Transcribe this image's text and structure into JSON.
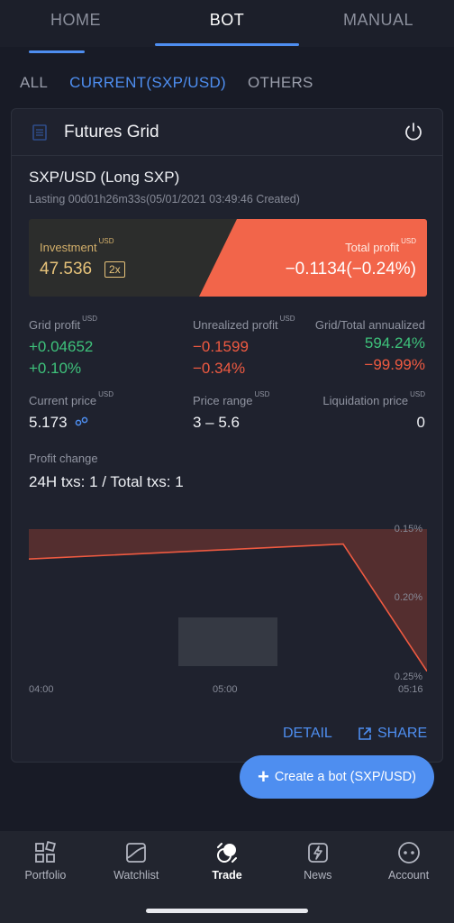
{
  "top_tabs": [
    {
      "label": "HOME"
    },
    {
      "label": "BOT"
    },
    {
      "label": "MANUAL"
    }
  ],
  "filters": [
    {
      "label": "ALL"
    },
    {
      "label": "CURRENT(SXP/USD)"
    },
    {
      "label": "OTHERS"
    }
  ],
  "card": {
    "title": "Futures Grid",
    "pair": "SXP/USD (Long SXP)",
    "lasting": "Lasting 00d01h26m33s(05/01/2021 03:49:46 Created)",
    "investment": {
      "label": "Investment",
      "unit": "USD",
      "value": "47.536",
      "leverage": "2x"
    },
    "total_profit": {
      "label": "Total profit",
      "unit": "USD",
      "value": "−0.1134(−0.24%)"
    },
    "grid_profit": {
      "label": "Grid profit",
      "unit": "USD",
      "value": "+0.04652",
      "pct": "+0.10%"
    },
    "unrealized_profit": {
      "label": "Unrealized profit",
      "unit": "USD",
      "value": "−0.1599",
      "pct": "−0.34%"
    },
    "annualized": {
      "label": "Grid/Total annualized",
      "grid": "594.24%",
      "total": "−99.99%"
    },
    "current_price": {
      "label": "Current price",
      "unit": "USD",
      "value": "5.173"
    },
    "price_range": {
      "label": "Price range",
      "unit": "USD",
      "value": "3 – 5.6"
    },
    "liquidation_price": {
      "label": "Liquidation price",
      "unit": "USD",
      "value": "0"
    },
    "profit_change_label": "Profit change",
    "txs": "24H txs: 1 / Total txs: 1",
    "detail_label": "DETAIL",
    "share_label": "SHARE"
  },
  "chart_data": {
    "type": "area",
    "x": [
      "04:00",
      "05:00",
      "05:16"
    ],
    "x_ticks": [
      "04:00",
      "05:00",
      "05:16"
    ],
    "y_ticks": [
      "0.15%",
      "0.20%",
      "0.25%"
    ],
    "points": [
      {
        "x": "04:00",
        "y": 0.17
      },
      {
        "x": "05:00",
        "y": 0.16
      },
      {
        "x": "05:16",
        "y": 0.245
      }
    ],
    "ylim": [
      0.15,
      0.25
    ],
    "y_inverted": true,
    "grid": false,
    "line_color": "#ef5a41",
    "fill_color": "#5a3030"
  },
  "create_button_label": "Create a bot (SXP/USD)",
  "bottom_nav": [
    {
      "label": "Portfolio",
      "icon": "portfolio-icon"
    },
    {
      "label": "Watchlist",
      "icon": "watchlist-icon"
    },
    {
      "label": "Trade",
      "icon": "trade-icon"
    },
    {
      "label": "News",
      "icon": "news-icon"
    },
    {
      "label": "Account",
      "icon": "account-icon"
    }
  ],
  "colors": {
    "accent": "#4e8ef0",
    "profit": "#3ec27b",
    "loss": "#ef5a41",
    "investment": "#e7c37a"
  }
}
